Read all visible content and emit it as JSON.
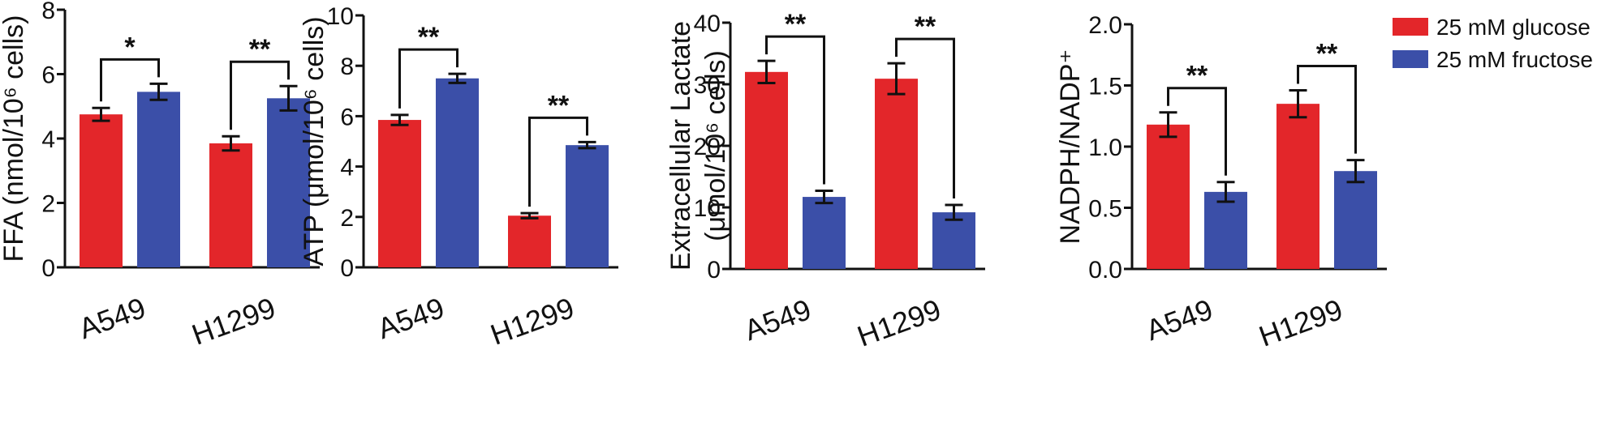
{
  "legend": [
    {
      "label": "25 mM glucose",
      "color": "#e3262a"
    },
    {
      "label": "25 mM fructose",
      "color": "#3b4fa8"
    }
  ],
  "chart_data": [
    {
      "type": "bar",
      "ylabel": "FFA (nmol/10⁶ cells)",
      "categories": [
        "A549",
        "H1299"
      ],
      "ylim": [
        0,
        8
      ],
      "ticks": [
        "0",
        "2",
        "4",
        "6",
        "8"
      ],
      "series": [
        {
          "name": "25 mM glucose",
          "values": [
            4.75,
            3.85
          ],
          "errors": [
            0.2,
            0.22
          ]
        },
        {
          "name": "25 mM fructose",
          "values": [
            5.45,
            5.25
          ],
          "errors": [
            0.25,
            0.38
          ]
        }
      ],
      "significance": [
        "*",
        "**"
      ]
    },
    {
      "type": "bar",
      "ylabel": "ATP (μmol/10⁶ cells)",
      "categories": [
        "A549",
        "H1299"
      ],
      "ylim": [
        0,
        10
      ],
      "ticks": [
        "0",
        "2",
        "4",
        "6",
        "8",
        "10"
      ],
      "series": [
        {
          "name": "25 mM glucose",
          "values": [
            5.85,
            2.05
          ],
          "errors": [
            0.2,
            0.1
          ]
        },
        {
          "name": "25 mM fructose",
          "values": [
            7.5,
            4.85
          ],
          "errors": [
            0.18,
            0.12
          ]
        }
      ],
      "significance": [
        "**",
        "**"
      ]
    },
    {
      "type": "bar",
      "ylabel": "Extracellular Lactate",
      "ylabel2": "(μmol/10⁶ cells)",
      "categories": [
        "A549",
        "H1299"
      ],
      "ylim": [
        0,
        40
      ],
      "ticks": [
        "0",
        "10",
        "20",
        "30",
        "40"
      ],
      "series": [
        {
          "name": "25 mM glucose",
          "values": [
            32.0,
            30.9
          ],
          "errors": [
            1.8,
            2.5
          ]
        },
        {
          "name": "25 mM fructose",
          "values": [
            11.7,
            9.2
          ],
          "errors": [
            1.0,
            1.2
          ]
        }
      ],
      "significance": [
        "**",
        "**"
      ]
    },
    {
      "type": "bar",
      "ylabel": "NADPH/NADP⁺",
      "categories": [
        "A549",
        "H1299"
      ],
      "ylim": [
        0,
        2.0
      ],
      "ticks": [
        "0.0",
        "0.5",
        "1.0",
        "1.5",
        "2.0"
      ],
      "series": [
        {
          "name": "25 mM glucose",
          "values": [
            1.18,
            1.35
          ],
          "errors": [
            0.1,
            0.11
          ]
        },
        {
          "name": "25 mM fructose",
          "values": [
            0.63,
            0.8
          ],
          "errors": [
            0.08,
            0.09
          ]
        }
      ],
      "significance": [
        "**",
        "**"
      ]
    }
  ]
}
